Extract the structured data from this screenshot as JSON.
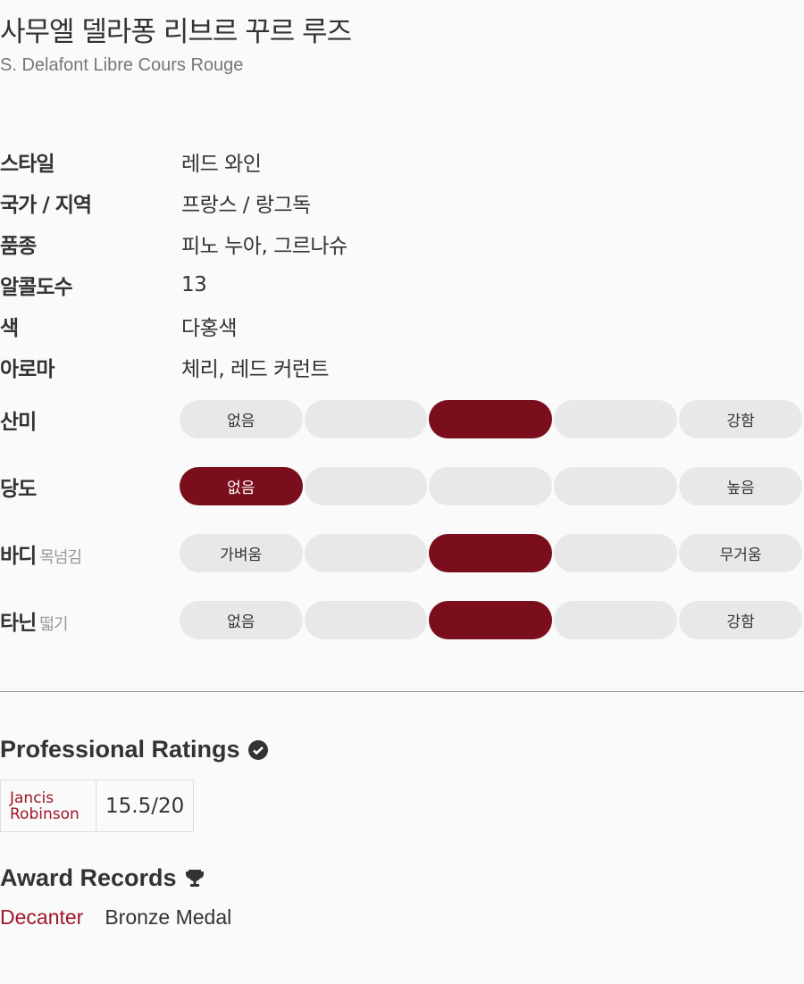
{
  "title": "사무엘 델라퐁 리브르 꾸르 루즈",
  "subtitle": "S. Delafont Libre Cours Rouge",
  "info": [
    {
      "label": "스타일",
      "value": "레드 와인"
    },
    {
      "label": "국가 / 지역",
      "value": "프랑스 / 랑그독"
    },
    {
      "label": "품종",
      "value": "피노 누아, 그르나슈"
    },
    {
      "label": "알콜도수",
      "value": "13"
    },
    {
      "label": "색",
      "value": "다홍색"
    },
    {
      "label": "아로마",
      "value": "체리, 레드 커런트"
    }
  ],
  "taste": [
    {
      "label": "산미",
      "sub": "",
      "low": "없음",
      "high": "강함",
      "level": 3,
      "of": 5
    },
    {
      "label": "당도",
      "sub": "",
      "low": "없음",
      "high": "높음",
      "level": 1,
      "of": 5
    },
    {
      "label": "바디",
      "sub": "목넘김",
      "low": "가벼움",
      "high": "무거움",
      "level": 3,
      "of": 5
    },
    {
      "label": "타닌",
      "sub": "떫기",
      "low": "없음",
      "high": "강함",
      "level": 3,
      "of": 5
    }
  ],
  "colors": {
    "accent": "#7a0e1c",
    "link": "#a0162a",
    "pill": "#e8e8e8"
  },
  "ratings": {
    "heading": "Professional Ratings",
    "icon": "check-circle-icon",
    "items": [
      {
        "critic": "Jancis Robinson",
        "score": "15.5/20"
      }
    ]
  },
  "awards": {
    "heading": "Award Records",
    "icon": "trophy-icon",
    "items": [
      {
        "org": "Decanter",
        "award": "Bronze Medal"
      }
    ]
  }
}
